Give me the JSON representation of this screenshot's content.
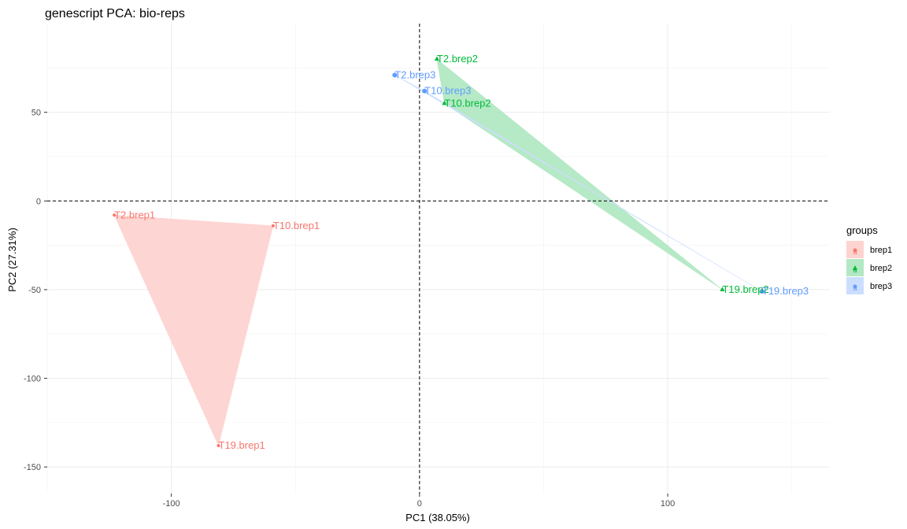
{
  "chart_data": {
    "type": "scatter",
    "title": "genescript PCA: bio-reps",
    "xlabel": "PC1 (38.05%)",
    "ylabel": "PC2 (27.31%)",
    "xlim": [
      -150,
      165
    ],
    "ylim": [
      -165,
      100
    ],
    "x_ticks": [
      -100,
      0,
      100
    ],
    "y_ticks": [
      -150,
      -100,
      -50,
      0,
      50
    ],
    "grid": true,
    "reference_lines": {
      "x": 0,
      "y": 0,
      "style": "dashed"
    },
    "legend": {
      "title": "groups",
      "placement": "right"
    },
    "series": [
      {
        "name": "brep1",
        "color": "#F8766D",
        "fill": "#FDD3D0",
        "marker": "circle",
        "points": [
          {
            "label": "T2.brep1",
            "x": -123,
            "y": -8
          },
          {
            "label": "T10.brep1",
            "x": -59,
            "y": -14
          },
          {
            "label": "T19.brep1",
            "x": -81,
            "y": -138
          }
        ]
      },
      {
        "name": "brep2",
        "color": "#00BA38",
        "fill": "#B2E8C3",
        "marker": "triangle",
        "points": [
          {
            "label": "T2.brep2",
            "x": 7,
            "y": 80
          },
          {
            "label": "T10.brep2",
            "x": 10,
            "y": 55
          },
          {
            "label": "T19.brep2",
            "x": 122,
            "y": -50
          }
        ]
      },
      {
        "name": "brep3",
        "color": "#619CFF",
        "fill": "#CCDEFF",
        "marker": "circle",
        "points": [
          {
            "label": "T2.brep3",
            "x": -10,
            "y": 71
          },
          {
            "label": "T10.brep3",
            "x": 2,
            "y": 62
          },
          {
            "label": "T19.brep3",
            "x": 138,
            "y": -51
          }
        ]
      }
    ]
  }
}
